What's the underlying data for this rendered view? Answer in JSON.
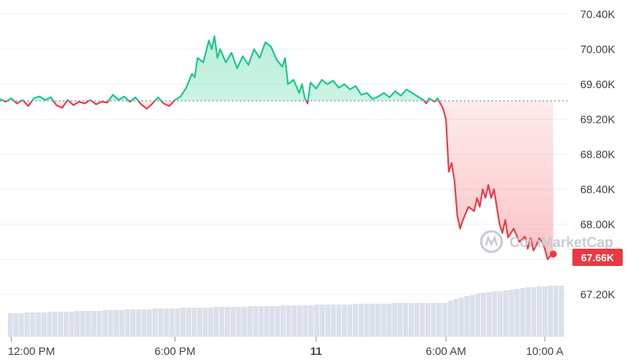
{
  "watermark": "CoinMarketCap",
  "current_price_label": "67.66K",
  "colors": {
    "up": "#16c784",
    "down": "#ea3943",
    "grid": "#eff2f5",
    "volume": "#cfd6e4",
    "baseline": "#8f96a3"
  },
  "chart_data": {
    "type": "line",
    "title": "",
    "xlabel": "",
    "ylabel": "",
    "y_unit": "USD",
    "ylim": [
      67000,
      70550
    ],
    "baseline": 69410,
    "yticks": [
      {
        "value": 70400,
        "label": "70.40K"
      },
      {
        "value": 70000,
        "label": "70.00K"
      },
      {
        "value": 69600,
        "label": "69.60K"
      },
      {
        "value": 69200,
        "label": "69.20K"
      },
      {
        "value": 68800,
        "label": "68.80K"
      },
      {
        "value": 68400,
        "label": "68.40K"
      },
      {
        "value": 68000,
        "label": "68.00K"
      },
      {
        "value": 67200,
        "label": "67.20K"
      }
    ],
    "xticks": [
      {
        "label": "12:00 PM",
        "t": 0.02,
        "bold": false
      },
      {
        "label": "6:00 PM",
        "t": 0.31,
        "bold": false
      },
      {
        "label": "11",
        "t": 0.56,
        "bold": true
      },
      {
        "label": "6:00 AM",
        "t": 0.79,
        "bold": false
      },
      {
        "label": "10:00 A",
        "t": 0.965,
        "bold": false
      }
    ],
    "current_price": 67660,
    "grid": true,
    "series": [
      {
        "points": [
          [
            0.0,
            69430
          ],
          [
            0.01,
            69400
          ],
          [
            0.02,
            69440
          ],
          [
            0.03,
            69380
          ],
          [
            0.04,
            69420
          ],
          [
            0.05,
            69350
          ],
          [
            0.06,
            69440
          ],
          [
            0.07,
            69460
          ],
          [
            0.08,
            69420
          ],
          [
            0.09,
            69450
          ],
          [
            0.1,
            69360
          ],
          [
            0.11,
            69330
          ],
          [
            0.12,
            69420
          ],
          [
            0.13,
            69360
          ],
          [
            0.14,
            69400
          ],
          [
            0.15,
            69380
          ],
          [
            0.16,
            69420
          ],
          [
            0.17,
            69370
          ],
          [
            0.18,
            69400
          ],
          [
            0.19,
            69390
          ],
          [
            0.2,
            69480
          ],
          [
            0.21,
            69420
          ],
          [
            0.22,
            69460
          ],
          [
            0.23,
            69400
          ],
          [
            0.24,
            69450
          ],
          [
            0.25,
            69370
          ],
          [
            0.26,
            69320
          ],
          [
            0.27,
            69380
          ],
          [
            0.28,
            69450
          ],
          [
            0.29,
            69380
          ],
          [
            0.3,
            69350
          ],
          [
            0.31,
            69420
          ],
          [
            0.32,
            69460
          ],
          [
            0.33,
            69560
          ],
          [
            0.34,
            69720
          ],
          [
            0.345,
            69680
          ],
          [
            0.35,
            69900
          ],
          [
            0.36,
            69850
          ],
          [
            0.37,
            70100
          ],
          [
            0.375,
            70000
          ],
          [
            0.38,
            70150
          ],
          [
            0.385,
            69900
          ],
          [
            0.39,
            70000
          ],
          [
            0.4,
            69850
          ],
          [
            0.41,
            69960
          ],
          [
            0.42,
            69780
          ],
          [
            0.43,
            69920
          ],
          [
            0.44,
            69820
          ],
          [
            0.45,
            70000
          ],
          [
            0.46,
            69900
          ],
          [
            0.47,
            70080
          ],
          [
            0.48,
            70030
          ],
          [
            0.49,
            69880
          ],
          [
            0.5,
            69800
          ],
          [
            0.505,
            69900
          ],
          [
            0.51,
            69600
          ],
          [
            0.52,
            69650
          ],
          [
            0.53,
            69500
          ],
          [
            0.535,
            69600
          ],
          [
            0.54,
            69440
          ],
          [
            0.545,
            69380
          ],
          [
            0.55,
            69620
          ],
          [
            0.56,
            69550
          ],
          [
            0.57,
            69650
          ],
          [
            0.58,
            69600
          ],
          [
            0.59,
            69640
          ],
          [
            0.6,
            69560
          ],
          [
            0.61,
            69600
          ],
          [
            0.62,
            69540
          ],
          [
            0.63,
            69580
          ],
          [
            0.64,
            69480
          ],
          [
            0.65,
            69500
          ],
          [
            0.66,
            69430
          ],
          [
            0.67,
            69460
          ],
          [
            0.68,
            69500
          ],
          [
            0.69,
            69450
          ],
          [
            0.7,
            69520
          ],
          [
            0.71,
            69470
          ],
          [
            0.72,
            69540
          ],
          [
            0.73,
            69500
          ],
          [
            0.74,
            69460
          ],
          [
            0.75,
            69420
          ],
          [
            0.755,
            69380
          ],
          [
            0.76,
            69440
          ],
          [
            0.77,
            69400
          ],
          [
            0.775,
            69440
          ],
          [
            0.78,
            69380
          ],
          [
            0.785,
            69320
          ],
          [
            0.79,
            69200
          ],
          [
            0.795,
            68600
          ],
          [
            0.8,
            68700
          ],
          [
            0.805,
            68500
          ],
          [
            0.81,
            68100
          ],
          [
            0.815,
            67950
          ],
          [
            0.82,
            68050
          ],
          [
            0.83,
            68200
          ],
          [
            0.84,
            68150
          ],
          [
            0.845,
            68300
          ],
          [
            0.85,
            68200
          ],
          [
            0.855,
            68400
          ],
          [
            0.86,
            68300
          ],
          [
            0.865,
            68450
          ],
          [
            0.87,
            68300
          ],
          [
            0.875,
            68400
          ],
          [
            0.88,
            68200
          ],
          [
            0.885,
            68000
          ],
          [
            0.89,
            67900
          ],
          [
            0.895,
            68050
          ],
          [
            0.9,
            67850
          ],
          [
            0.91,
            67950
          ],
          [
            0.92,
            67800
          ],
          [
            0.93,
            67860
          ],
          [
            0.935,
            67720
          ],
          [
            0.94,
            67850
          ],
          [
            0.945,
            67700
          ],
          [
            0.95,
            67760
          ],
          [
            0.955,
            67840
          ],
          [
            0.96,
            67800
          ],
          [
            0.965,
            67720
          ],
          [
            0.97,
            67600
          ],
          [
            0.975,
            67640
          ],
          [
            0.98,
            67660
          ]
        ]
      }
    ],
    "volume": [
      0.3,
      0.3,
      0.3,
      0.31,
      0.31,
      0.31,
      0.31,
      0.32,
      0.32,
      0.32,
      0.32,
      0.32,
      0.33,
      0.33,
      0.33,
      0.33,
      0.33,
      0.34,
      0.34,
      0.34,
      0.34,
      0.35,
      0.35,
      0.35,
      0.35,
      0.35,
      0.36,
      0.36,
      0.36,
      0.36,
      0.36,
      0.37,
      0.37,
      0.37,
      0.37,
      0.37,
      0.37,
      0.38,
      0.38,
      0.38,
      0.38,
      0.38,
      0.38,
      0.39,
      0.39,
      0.39,
      0.39,
      0.39,
      0.39,
      0.4,
      0.4,
      0.4,
      0.4,
      0.4,
      0.4,
      0.41,
      0.41,
      0.41,
      0.41,
      0.41,
      0.41,
      0.41,
      0.42,
      0.42,
      0.42,
      0.42,
      0.42,
      0.42,
      0.42,
      0.43,
      0.43,
      0.43,
      0.43,
      0.43,
      0.43,
      0.43,
      0.43,
      0.43,
      0.43,
      0.46,
      0.48,
      0.5,
      0.52,
      0.53,
      0.55,
      0.56,
      0.57,
      0.58,
      0.58,
      0.59,
      0.6,
      0.61,
      0.62,
      0.63,
      0.63,
      0.64,
      0.64,
      0.65,
      0.65,
      0.65
    ]
  }
}
